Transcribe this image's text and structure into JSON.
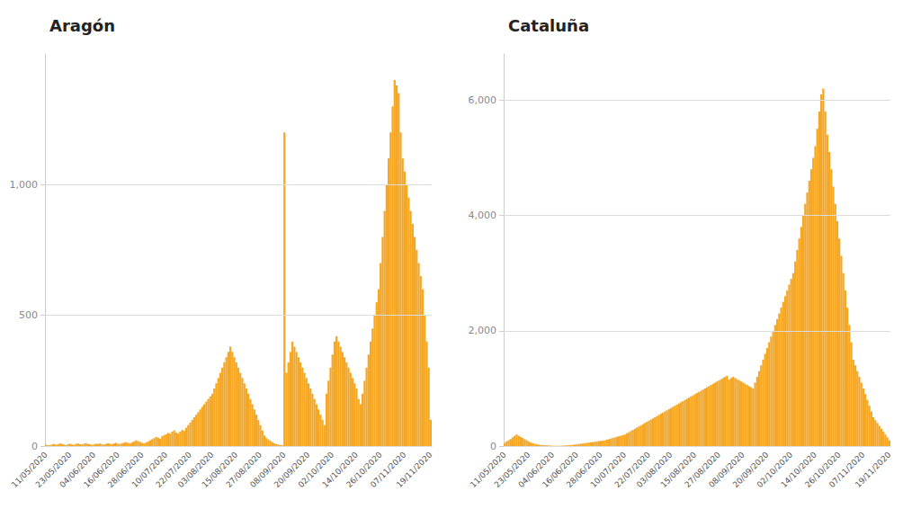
{
  "chart_data": [
    {
      "type": "bar",
      "title": "Aragón",
      "color": "#f5a623",
      "categories": [
        "11/05/2020",
        null,
        null,
        null,
        null,
        null,
        null,
        null,
        null,
        null,
        null,
        null,
        "23/05/2020",
        null,
        null,
        null,
        null,
        null,
        null,
        null,
        null,
        null,
        null,
        null,
        "04/06/2020",
        null,
        null,
        null,
        null,
        null,
        null,
        null,
        null,
        null,
        null,
        null,
        "16/06/2020",
        null,
        null,
        null,
        null,
        null,
        null,
        null,
        null,
        null,
        null,
        null,
        "28/06/2020",
        null,
        null,
        null,
        null,
        null,
        null,
        null,
        null,
        null,
        null,
        null,
        "10/07/2020",
        null,
        null,
        null,
        null,
        null,
        null,
        null,
        null,
        null,
        null,
        null,
        "22/07/2020",
        null,
        null,
        null,
        null,
        null,
        null,
        null,
        null,
        null,
        null,
        "03/08/2020",
        null,
        null,
        null,
        null,
        null,
        null,
        null,
        null,
        null,
        null,
        null,
        "15/08/2020",
        null,
        null,
        null,
        null,
        null,
        null,
        null,
        null,
        null,
        null,
        null,
        "27/08/2020",
        null,
        null,
        null,
        null,
        null,
        null,
        null,
        null,
        null,
        null,
        null,
        "08/09/2020",
        null,
        null,
        null,
        null,
        null,
        null,
        null,
        null,
        null,
        null,
        null,
        "20/09/2020",
        null,
        null,
        null,
        null,
        null,
        null,
        null,
        null,
        null,
        null,
        null,
        "02/10/2020",
        null,
        null,
        null,
        null,
        null,
        null,
        null,
        null,
        null,
        null,
        null,
        "14/10/2020",
        null,
        null,
        null,
        null,
        null,
        null,
        null,
        null,
        null,
        null,
        null,
        "26/10/2020",
        null,
        null,
        null,
        null,
        null,
        null,
        null,
        null,
        null,
        null,
        null,
        "07/11/2020",
        null,
        null,
        null,
        null,
        null,
        null,
        null,
        null,
        null,
        null,
        null,
        null,
        "19/11/2020"
      ],
      "values": [
        5,
        3,
        4,
        6,
        8,
        5,
        7,
        10,
        8,
        6,
        4,
        7,
        9,
        6,
        5,
        8,
        10,
        7,
        6,
        9,
        11,
        8,
        7,
        5,
        6,
        9,
        8,
        10,
        7,
        6,
        8,
        11,
        9,
        7,
        10,
        12,
        9,
        8,
        11,
        13,
        15,
        12,
        10,
        14,
        18,
        22,
        19,
        16,
        12,
        10,
        14,
        18,
        22,
        26,
        30,
        35,
        32,
        28,
        38,
        42,
        45,
        50,
        48,
        55,
        60,
        52,
        48,
        55,
        62,
        58,
        70,
        80,
        90,
        100,
        110,
        120,
        130,
        140,
        150,
        160,
        170,
        180,
        190,
        200,
        220,
        240,
        260,
        280,
        300,
        320,
        340,
        360,
        380,
        360,
        340,
        320,
        300,
        280,
        260,
        240,
        220,
        200,
        180,
        160,
        140,
        120,
        100,
        80,
        60,
        40,
        30,
        25,
        20,
        15,
        10,
        8,
        6,
        4,
        3,
        1200,
        280,
        320,
        360,
        400,
        380,
        360,
        340,
        320,
        300,
        280,
        260,
        240,
        220,
        200,
        180,
        160,
        140,
        120,
        100,
        80,
        200,
        250,
        300,
        350,
        400,
        420,
        400,
        380,
        360,
        340,
        320,
        300,
        280,
        260,
        240,
        220,
        180,
        160,
        200,
        250,
        300,
        350,
        400,
        450,
        500,
        550,
        600,
        700,
        800,
        900,
        1000,
        1100,
        1200,
        1300,
        1400,
        1380,
        1350,
        1200,
        1100,
        1050,
        1000,
        950,
        900,
        850,
        800,
        750,
        700,
        650,
        600,
        500,
        400,
        300,
        100
      ],
      "ylim": [
        0,
        1500
      ],
      "yticks": [
        0,
        500,
        1000
      ],
      "grid": true
    },
    {
      "type": "bar",
      "title": "Cataluña",
      "color": "#f5a623",
      "categories": [
        "11/05/2020",
        null,
        null,
        null,
        null,
        null,
        null,
        null,
        null,
        null,
        null,
        null,
        "23/05/2020",
        null,
        null,
        null,
        null,
        null,
        null,
        null,
        null,
        null,
        null,
        null,
        "04/06/2020",
        null,
        null,
        null,
        null,
        null,
        null,
        null,
        null,
        null,
        null,
        null,
        "16/06/2020",
        null,
        null,
        null,
        null,
        null,
        null,
        null,
        null,
        null,
        null,
        null,
        "28/06/2020",
        null,
        null,
        null,
        null,
        null,
        null,
        null,
        null,
        null,
        null,
        null,
        "10/07/2020",
        null,
        null,
        null,
        null,
        null,
        null,
        null,
        null,
        null,
        null,
        null,
        "22/07/2020",
        null,
        null,
        null,
        null,
        null,
        null,
        null,
        null,
        null,
        null,
        "03/08/2020",
        null,
        null,
        null,
        null,
        null,
        null,
        null,
        null,
        null,
        null,
        null,
        "15/08/2020",
        null,
        null,
        null,
        null,
        null,
        null,
        null,
        null,
        null,
        null,
        null,
        "27/08/2020",
        null,
        null,
        null,
        null,
        null,
        null,
        null,
        null,
        null,
        null,
        null,
        "08/09/2020",
        null,
        null,
        null,
        null,
        null,
        null,
        null,
        null,
        null,
        null,
        null,
        "20/09/2020",
        null,
        null,
        null,
        null,
        null,
        null,
        null,
        null,
        null,
        null,
        null,
        "02/10/2020",
        null,
        null,
        null,
        null,
        null,
        null,
        null,
        null,
        null,
        null,
        null,
        "14/10/2020",
        null,
        null,
        null,
        null,
        null,
        null,
        null,
        null,
        null,
        null,
        null,
        "26/10/2020",
        null,
        null,
        null,
        null,
        null,
        null,
        null,
        null,
        null,
        null,
        null,
        "07/11/2020",
        null,
        null,
        null,
        null,
        null,
        null,
        null,
        null,
        null,
        null,
        null,
        null,
        "19/11/2020"
      ],
      "values": [
        50,
        80,
        100,
        120,
        150,
        180,
        200,
        180,
        160,
        140,
        120,
        100,
        80,
        60,
        50,
        40,
        30,
        25,
        20,
        18,
        15,
        12,
        10,
        8,
        6,
        5,
        4,
        3,
        5,
        8,
        10,
        12,
        15,
        18,
        20,
        25,
        30,
        35,
        40,
        45,
        50,
        55,
        60,
        65,
        70,
        75,
        80,
        85,
        90,
        95,
        100,
        110,
        120,
        130,
        140,
        150,
        160,
        170,
        180,
        190,
        200,
        220,
        240,
        260,
        280,
        300,
        320,
        340,
        360,
        380,
        400,
        420,
        440,
        460,
        480,
        500,
        520,
        540,
        560,
        580,
        600,
        620,
        640,
        660,
        680,
        700,
        720,
        740,
        760,
        780,
        800,
        820,
        840,
        860,
        880,
        900,
        920,
        940,
        960,
        980,
        1000,
        1020,
        1040,
        1060,
        1080,
        1100,
        1120,
        1140,
        1160,
        1180,
        1200,
        1220,
        1150,
        1180,
        1200,
        1180,
        1160,
        1140,
        1120,
        1100,
        1080,
        1060,
        1040,
        1020,
        1000,
        1100,
        1200,
        1300,
        1400,
        1500,
        1600,
        1700,
        1800,
        1900,
        2000,
        2100,
        2200,
        2300,
        2400,
        2500,
        2600,
        2700,
        2800,
        2900,
        3000,
        3200,
        3400,
        3600,
        3800,
        4000,
        4200,
        4400,
        4600,
        4800,
        5000,
        5200,
        5500,
        5800,
        6100,
        6200,
        5800,
        5400,
        5100,
        4800,
        4500,
        4200,
        3900,
        3600,
        3300,
        3000,
        2700,
        2400,
        2100,
        1800,
        1500,
        1400,
        1300,
        1200,
        1100,
        1000,
        900,
        800,
        700,
        600,
        500,
        450,
        400,
        350,
        300,
        250,
        200,
        150,
        100
      ],
      "ylim": [
        0,
        6800
      ],
      "yticks": [
        0,
        2000,
        4000,
        6000
      ],
      "grid": true
    }
  ]
}
